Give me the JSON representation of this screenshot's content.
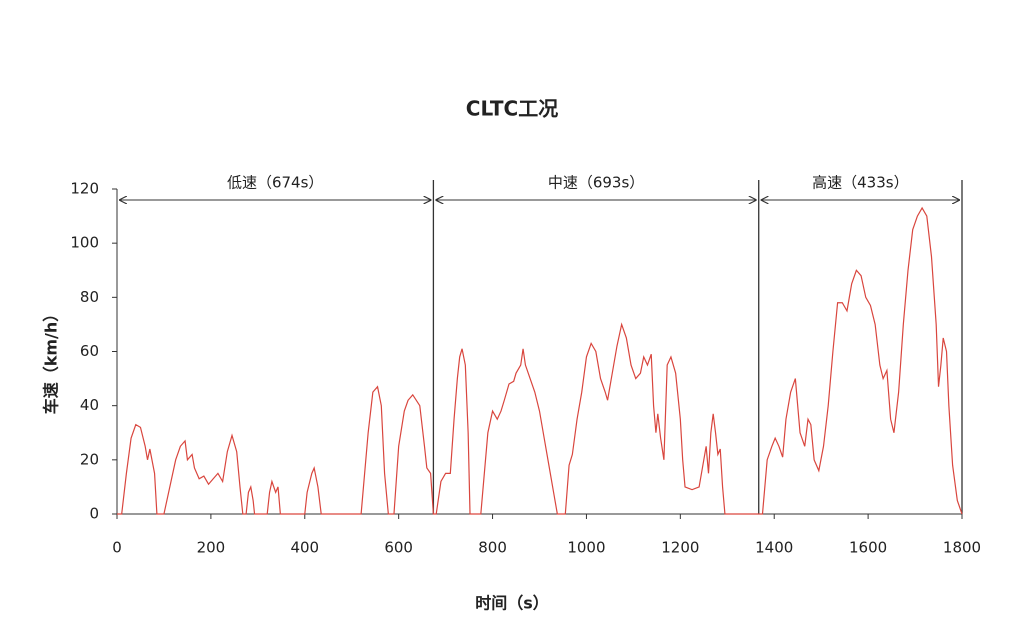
{
  "chart_data": {
    "type": "line",
    "title": "CLTC工况",
    "xlabel": "时间（s）",
    "ylabel": "车速（km/h）",
    "xlim": [
      0,
      1800
    ],
    "ylim": [
      0,
      120
    ],
    "xticks": [
      0,
      200,
      400,
      600,
      800,
      1000,
      1200,
      1400,
      1600,
      1800
    ],
    "yticks": [
      0,
      20,
      40,
      60,
      80,
      100,
      120
    ],
    "segments": [
      {
        "label": "低速（674s）",
        "start": 0,
        "end": 674
      },
      {
        "label": "中速（693s）",
        "start": 674,
        "end": 1367
      },
      {
        "label": "高速（433s）",
        "start": 1367,
        "end": 1800
      }
    ],
    "x": [
      0,
      10,
      20,
      30,
      40,
      50,
      60,
      65,
      70,
      80,
      85,
      100,
      115,
      125,
      135,
      145,
      150,
      160,
      165,
      175,
      185,
      195,
      205,
      215,
      225,
      235,
      245,
      255,
      262,
      268,
      275,
      280,
      285,
      290,
      293,
      320,
      325,
      330,
      338,
      343,
      348,
      400,
      405,
      415,
      420,
      428,
      435,
      520,
      535,
      545,
      555,
      563,
      570,
      578,
      590,
      600,
      612,
      620,
      630,
      645,
      655,
      660,
      668,
      674,
      680,
      690,
      700,
      710,
      718,
      725,
      730,
      735,
      742,
      748,
      752,
      775,
      785,
      790,
      800,
      810,
      818,
      825,
      835,
      845,
      850,
      860,
      865,
      870,
      880,
      890,
      900,
      910,
      920,
      930,
      938,
      955,
      963,
      970,
      980,
      990,
      1000,
      1010,
      1020,
      1030,
      1040,
      1045,
      1055,
      1065,
      1075,
      1085,
      1095,
      1105,
      1115,
      1122,
      1130,
      1138,
      1143,
      1148,
      1152,
      1158,
      1165,
      1172,
      1180,
      1190,
      1200,
      1205,
      1210,
      1225,
      1240,
      1250,
      1255,
      1260,
      1265,
      1270,
      1275,
      1280,
      1285,
      1290,
      1295,
      1367,
      1375,
      1385,
      1395,
      1402,
      1410,
      1418,
      1425,
      1435,
      1445,
      1455,
      1465,
      1472,
      1478,
      1485,
      1495,
      1505,
      1515,
      1525,
      1535,
      1545,
      1555,
      1565,
      1575,
      1585,
      1595,
      1605,
      1615,
      1625,
      1632,
      1640,
      1648,
      1655,
      1665,
      1675,
      1685,
      1695,
      1705,
      1715,
      1725,
      1735,
      1745,
      1750,
      1755,
      1760,
      1767,
      1772,
      1780,
      1790,
      1800
    ],
    "series": [
      {
        "name": "车速",
        "color": "#d9463e",
        "values": [
          0,
          0,
          15,
          28,
          33,
          32,
          25,
          20,
          24,
          15,
          0,
          0,
          12,
          20,
          25,
          27,
          20,
          22,
          17,
          13,
          14,
          11,
          13,
          15,
          12,
          23,
          29,
          23,
          10,
          0,
          0,
          8,
          10,
          5,
          0,
          0,
          8,
          12,
          8,
          10,
          0,
          0,
          8,
          15,
          17,
          10,
          0,
          0,
          30,
          45,
          47,
          40,
          15,
          0,
          0,
          25,
          38,
          42,
          44,
          40,
          25,
          17,
          15,
          0,
          0,
          12,
          15,
          15,
          35,
          50,
          58,
          61,
          55,
          30,
          0,
          0,
          20,
          30,
          38,
          35,
          38,
          42,
          48,
          49,
          52,
          55,
          61,
          55,
          50,
          45,
          38,
          28,
          18,
          8,
          0,
          0,
          18,
          22,
          35,
          45,
          58,
          63,
          60,
          50,
          45,
          42,
          52,
          62,
          70,
          65,
          55,
          50,
          52,
          58,
          55,
          59,
          40,
          30,
          37,
          28,
          20,
          55,
          58,
          52,
          35,
          20,
          10,
          9,
          10,
          20,
          25,
          15,
          30,
          37,
          30,
          22,
          24,
          10,
          0,
          0,
          0,
          20,
          25,
          28,
          25,
          21,
          35,
          45,
          50,
          30,
          25,
          35,
          33,
          20,
          16,
          25,
          40,
          60,
          78,
          78,
          75,
          85,
          90,
          88,
          80,
          77,
          70,
          55,
          50,
          53,
          35,
          30,
          45,
          70,
          90,
          105,
          110,
          113,
          110,
          95,
          70,
          47,
          55,
          65,
          60,
          40,
          18,
          5,
          0
        ]
      }
    ]
  }
}
